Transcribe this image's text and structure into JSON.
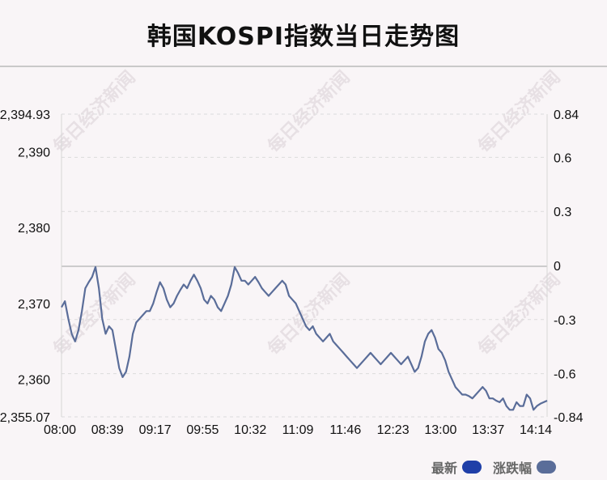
{
  "title": "韩国KOSPI指数当日走势图",
  "watermark": "每日经济新闻",
  "legend": [
    {
      "label": "最新",
      "color": "#1f3fa8"
    },
    {
      "label": "涨跌幅",
      "color": "#5a6d99"
    }
  ],
  "chart_data": {
    "type": "line",
    "x_ticks": [
      "08:00",
      "08:39",
      "09:17",
      "09:55",
      "10:32",
      "11:09",
      "11:46",
      "12:23",
      "13:00",
      "13:37",
      "14:14"
    ],
    "y_left_ticks": [
      "2,394.93",
      "2,390",
      "2,380",
      "2,370",
      "2,360",
      "2,355.07"
    ],
    "y_right_ticks": [
      "0.84",
      "0.6",
      "0.3",
      "0",
      "-0.3",
      "-0.6",
      "-0.84"
    ],
    "ylim_left": [
      2355.07,
      2394.93
    ],
    "ylim_right": [
      -0.84,
      0.84
    ],
    "baseline": 2374.9,
    "grid": true,
    "line_color": "#5a6d99",
    "series": [
      {
        "values": [
          [
            0,
            2369.5
          ],
          [
            1,
            2370.3
          ],
          [
            2,
            2368.0
          ],
          [
            3,
            2366.0
          ],
          [
            4,
            2365.0
          ],
          [
            5,
            2366.5
          ],
          [
            6,
            2369.0
          ],
          [
            7,
            2372.0
          ],
          [
            8,
            2372.8
          ],
          [
            9,
            2373.5
          ],
          [
            10,
            2374.8
          ],
          [
            11,
            2372.0
          ],
          [
            12,
            2368.0
          ],
          [
            13,
            2366.0
          ],
          [
            14,
            2367.0
          ],
          [
            15,
            2366.5
          ],
          [
            16,
            2364.0
          ],
          [
            17,
            2361.5
          ],
          [
            18,
            2360.3
          ],
          [
            19,
            2361.0
          ],
          [
            20,
            2363.0
          ],
          [
            21,
            2366.0
          ],
          [
            22,
            2367.5
          ],
          [
            23,
            2368.0
          ],
          [
            24,
            2368.5
          ],
          [
            25,
            2369.0
          ],
          [
            26,
            2369.0
          ],
          [
            27,
            2370.0
          ],
          [
            28,
            2371.5
          ],
          [
            29,
            2372.8
          ],
          [
            30,
            2372.0
          ],
          [
            31,
            2370.5
          ],
          [
            32,
            2369.5
          ],
          [
            33,
            2370.0
          ],
          [
            34,
            2371.0
          ],
          [
            35,
            2371.8
          ],
          [
            36,
            2372.5
          ],
          [
            37,
            2372.0
          ],
          [
            38,
            2373.0
          ],
          [
            39,
            2373.8
          ],
          [
            40,
            2373.0
          ],
          [
            41,
            2372.0
          ],
          [
            42,
            2370.5
          ],
          [
            43,
            2370.0
          ],
          [
            44,
            2371.0
          ],
          [
            45,
            2370.5
          ],
          [
            46,
            2369.5
          ],
          [
            47,
            2369.0
          ],
          [
            48,
            2370.0
          ],
          [
            49,
            2371.0
          ],
          [
            50,
            2372.5
          ],
          [
            51,
            2374.8
          ],
          [
            52,
            2374.0
          ],
          [
            53,
            2373.0
          ],
          [
            54,
            2373.0
          ],
          [
            55,
            2372.5
          ],
          [
            56,
            2373.0
          ],
          [
            57,
            2373.5
          ],
          [
            58,
            2372.8
          ],
          [
            59,
            2372.0
          ],
          [
            60,
            2371.5
          ],
          [
            61,
            2371.0
          ],
          [
            62,
            2371.5
          ],
          [
            63,
            2372.0
          ],
          [
            64,
            2372.5
          ],
          [
            65,
            2373.0
          ],
          [
            66,
            2372.5
          ],
          [
            67,
            2371.0
          ],
          [
            68,
            2370.5
          ],
          [
            69,
            2370.0
          ],
          [
            70,
            2369.0
          ],
          [
            71,
            2368.0
          ],
          [
            72,
            2367.0
          ],
          [
            73,
            2366.5
          ],
          [
            74,
            2367.0
          ],
          [
            75,
            2366.0
          ],
          [
            76,
            2365.5
          ],
          [
            77,
            2365.0
          ],
          [
            78,
            2365.5
          ],
          [
            79,
            2366.0
          ],
          [
            80,
            2365.0
          ],
          [
            81,
            2364.5
          ],
          [
            82,
            2364.0
          ],
          [
            83,
            2363.5
          ],
          [
            84,
            2363.0
          ],
          [
            85,
            2362.5
          ],
          [
            86,
            2362.0
          ],
          [
            87,
            2361.5
          ],
          [
            88,
            2362.0
          ],
          [
            89,
            2362.5
          ],
          [
            90,
            2363.0
          ],
          [
            91,
            2363.5
          ],
          [
            92,
            2363.0
          ],
          [
            93,
            2362.5
          ],
          [
            94,
            2362.0
          ],
          [
            95,
            2362.5
          ],
          [
            96,
            2363.0
          ],
          [
            97,
            2363.5
          ],
          [
            98,
            2363.0
          ],
          [
            99,
            2362.5
          ],
          [
            100,
            2362.0
          ],
          [
            101,
            2362.5
          ],
          [
            102,
            2363.0
          ],
          [
            103,
            2362.0
          ],
          [
            104,
            2361.0
          ],
          [
            105,
            2361.5
          ],
          [
            106,
            2363.0
          ],
          [
            107,
            2365.0
          ],
          [
            108,
            2366.0
          ],
          [
            109,
            2366.5
          ],
          [
            110,
            2365.5
          ],
          [
            111,
            2364.0
          ],
          [
            112,
            2363.5
          ],
          [
            113,
            2362.5
          ],
          [
            114,
            2361.0
          ],
          [
            115,
            2360.0
          ],
          [
            116,
            2359.0
          ],
          [
            117,
            2358.5
          ],
          [
            118,
            2358.0
          ],
          [
            119,
            2358.0
          ],
          [
            120,
            2357.8
          ],
          [
            121,
            2357.5
          ],
          [
            122,
            2358.0
          ],
          [
            123,
            2358.5
          ],
          [
            124,
            2359.0
          ],
          [
            125,
            2358.5
          ],
          [
            126,
            2357.5
          ],
          [
            127,
            2357.5
          ],
          [
            128,
            2357.2
          ],
          [
            129,
            2357.0
          ],
          [
            130,
            2357.5
          ],
          [
            131,
            2356.5
          ],
          [
            132,
            2356.0
          ],
          [
            133,
            2356.0
          ],
          [
            134,
            2357.0
          ],
          [
            135,
            2356.5
          ],
          [
            136,
            2356.5
          ],
          [
            137,
            2358.0
          ],
          [
            138,
            2357.5
          ],
          [
            139,
            2356.0
          ],
          [
            140,
            2356.5
          ],
          [
            141,
            2356.8
          ],
          [
            142,
            2357.0
          ],
          [
            143,
            2357.2
          ]
        ]
      }
    ]
  }
}
